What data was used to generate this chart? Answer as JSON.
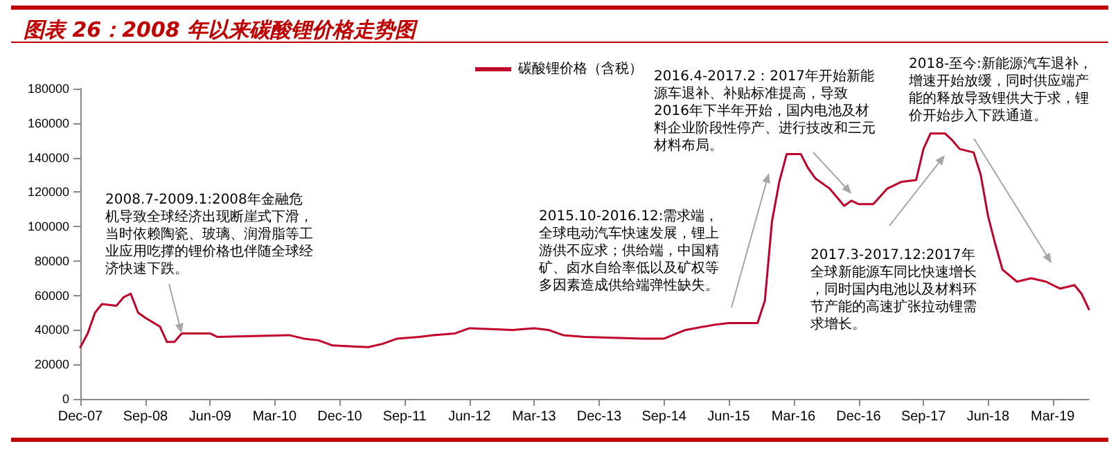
{
  "chart_data": {
    "type": "line",
    "title": "图表 26：2008 年以来碳酸锂价格走势图",
    "series": [
      {
        "name": "碳酸锂价格（含税）",
        "color": "#c0002a",
        "x": [
          "2007-12",
          "2008-01",
          "2008-02",
          "2008-03",
          "2008-05",
          "2008-06",
          "2008-07",
          "2008-08",
          "2008-09",
          "2008-11",
          "2008-12",
          "2009-01",
          "2009-02",
          "2009-06",
          "2009-07",
          "2010-05",
          "2010-07",
          "2010-09",
          "2010-11",
          "2011-04",
          "2011-06",
          "2011-08",
          "2011-11",
          "2012-01",
          "2012-04",
          "2012-06",
          "2012-12",
          "2013-03",
          "2013-05",
          "2013-07",
          "2013-10",
          "2014-06",
          "2014-09",
          "2014-12",
          "2015-04",
          "2015-06",
          "2015-10",
          "2015-11",
          "2015-12",
          "2016-01",
          "2016-02",
          "2016-04",
          "2016-05",
          "2016-06",
          "2016-08",
          "2016-10",
          "2016-11",
          "2016-12",
          "2017-02",
          "2017-04",
          "2017-06",
          "2017-08",
          "2017-09",
          "2017-10",
          "2017-12",
          "2018-01",
          "2018-02",
          "2018-04",
          "2018-05",
          "2018-06",
          "2018-07",
          "2018-08",
          "2018-10",
          "2018-12",
          "2019-02",
          "2019-04",
          "2019-06",
          "2019-07",
          "2019-08"
        ],
        "values": [
          30000,
          38000,
          50000,
          55000,
          54000,
          59000,
          61000,
          50000,
          47000,
          42000,
          33000,
          33000,
          38000,
          38000,
          36000,
          37000,
          35000,
          34000,
          31000,
          30000,
          32000,
          35000,
          36000,
          37000,
          38000,
          41000,
          40000,
          41000,
          40000,
          37000,
          36000,
          35000,
          35000,
          40000,
          43000,
          44000,
          44000,
          57000,
          103000,
          126000,
          142000,
          142000,
          134000,
          128000,
          122000,
          112000,
          115000,
          113000,
          113000,
          122000,
          126000,
          127000,
          145000,
          154000,
          154000,
          150000,
          145000,
          143000,
          130000,
          106000,
          90000,
          75000,
          68000,
          70000,
          68000,
          64000,
          66000,
          61000,
          52000
        ]
      }
    ],
    "xlim": [
      "2007-12",
      "2019-08"
    ],
    "xticks": [
      {
        "value": "2007-12",
        "label": "Dec-07"
      },
      {
        "value": "2008-09",
        "label": "Sep-08"
      },
      {
        "value": "2009-06",
        "label": "Jun-09"
      },
      {
        "value": "2010-03",
        "label": "Mar-10"
      },
      {
        "value": "2010-12",
        "label": "Dec-10"
      },
      {
        "value": "2011-09",
        "label": "Sep-11"
      },
      {
        "value": "2012-06",
        "label": "Jun-12"
      },
      {
        "value": "2013-03",
        "label": "Mar-13"
      },
      {
        "value": "2013-12",
        "label": "Dec-13"
      },
      {
        "value": "2014-09",
        "label": "Sep-14"
      },
      {
        "value": "2015-06",
        "label": "Jun-15"
      },
      {
        "value": "2016-03",
        "label": "Mar-16"
      },
      {
        "value": "2016-12",
        "label": "Dec-16"
      },
      {
        "value": "2017-09",
        "label": "Sep-17"
      },
      {
        "value": "2018-06",
        "label": "Jun-18"
      },
      {
        "value": "2019-03",
        "label": "Mar-19"
      }
    ],
    "ylim": [
      0,
      180000
    ],
    "yticks": [
      0,
      20000,
      40000,
      60000,
      80000,
      100000,
      120000,
      140000,
      160000,
      180000
    ],
    "grid": false,
    "legend": "top",
    "marker": "none",
    "line_style": "solid",
    "annotations": [
      {
        "text": "2008.7-2009.1:2008年金融危机导致全球经济出现断崖式下滑，当时依赖陶瓷、玻璃、润滑脂等工业应用吃撑的锂价格也伴随全球经济快速下跌。",
        "x": "2009-02",
        "y": 38000
      },
      "2015.10-2016.12:需求端，全球电动汽车快速发展，锂上游供不应求；供给端，中国精矿、卤水自给率低以及矿权等多因素造成供给端弹性缺失。",
      {
        "text": "2016.4-2017.2：2017年开始新能源车退补、补贴标准提高，导致2016年下半年开始，国内电池及材料企业阶段性停产、进行技改和三元材料布局。",
        "x": "2016-11",
        "y": 119000
      },
      "2017.3-2017.12:2017年全球新能源车同比快速增长，同时国内电池以及材料环节产能的高速扩张拉动锂需求增长。",
      "2018-至今:新能源汽车退补，增速开始放缓，同时供应端产能的释放导致锂供大于求，锂价开始步入下跌通道。"
    ]
  }
}
